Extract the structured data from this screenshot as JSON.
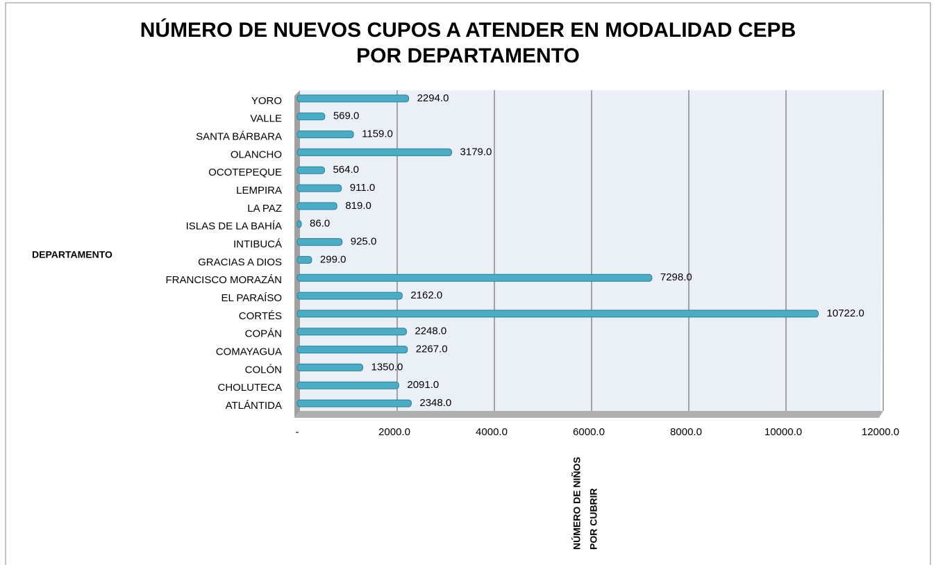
{
  "chart_data": {
    "type": "bar",
    "orientation": "horizontal",
    "title": [
      "NÚMERO DE NUEVOS CUPOS A ATENDER EN MODALIDAD CEPB",
      "POR DEPARTAMENTO"
    ],
    "y_label": "DEPARTAMENTO",
    "x_label": [
      "NÚMERO DE NIÑOS",
      "POR CUBRIR"
    ],
    "categories": [
      "ATLÁNTIDA",
      "CHOLUTECA",
      "COLÓN",
      "COMAYAGUA",
      "COPÁN",
      "CORTÉS",
      "EL PARAÍSO",
      "FRANCISCO MORAZÁN",
      "GRACIAS A DIOS",
      "INTIBUCÁ",
      "ISLAS DE LA BAHÍA",
      "LA PAZ",
      "LEMPIRA",
      "OCOTEPEQUE",
      "OLANCHO",
      "SANTA BÁRBARA",
      "VALLE",
      "YORO"
    ],
    "values": [
      2348,
      2091,
      1350,
      2267,
      2248,
      10722,
      2162,
      7298,
      299,
      925,
      86,
      819,
      911,
      564,
      3179,
      1159,
      569,
      2294
    ],
    "value_labels": [
      "2348.0",
      "2091.0",
      "1350.0",
      "2267.0",
      "2248.0",
      "10722.0",
      "2162.0",
      "7298.0",
      "299.0",
      "925.0",
      "86.0",
      "819.0",
      "911.0",
      "564.0",
      "3179.0",
      "1159.0",
      "569.0",
      "2294.0"
    ],
    "color": "#4bacc6",
    "xlim": [
      0,
      12000
    ],
    "xticks": [
      {
        "value": 0,
        "label": "-"
      },
      {
        "value": 2000,
        "label": "2000.0"
      },
      {
        "value": 4000,
        "label": "4000.0"
      },
      {
        "value": 6000,
        "label": "6000.0"
      },
      {
        "value": 8000,
        "label": "8000.0"
      },
      {
        "value": 10000,
        "label": "10000.0"
      },
      {
        "value": 12000,
        "label": "12000.0"
      }
    ],
    "grid": true
  }
}
